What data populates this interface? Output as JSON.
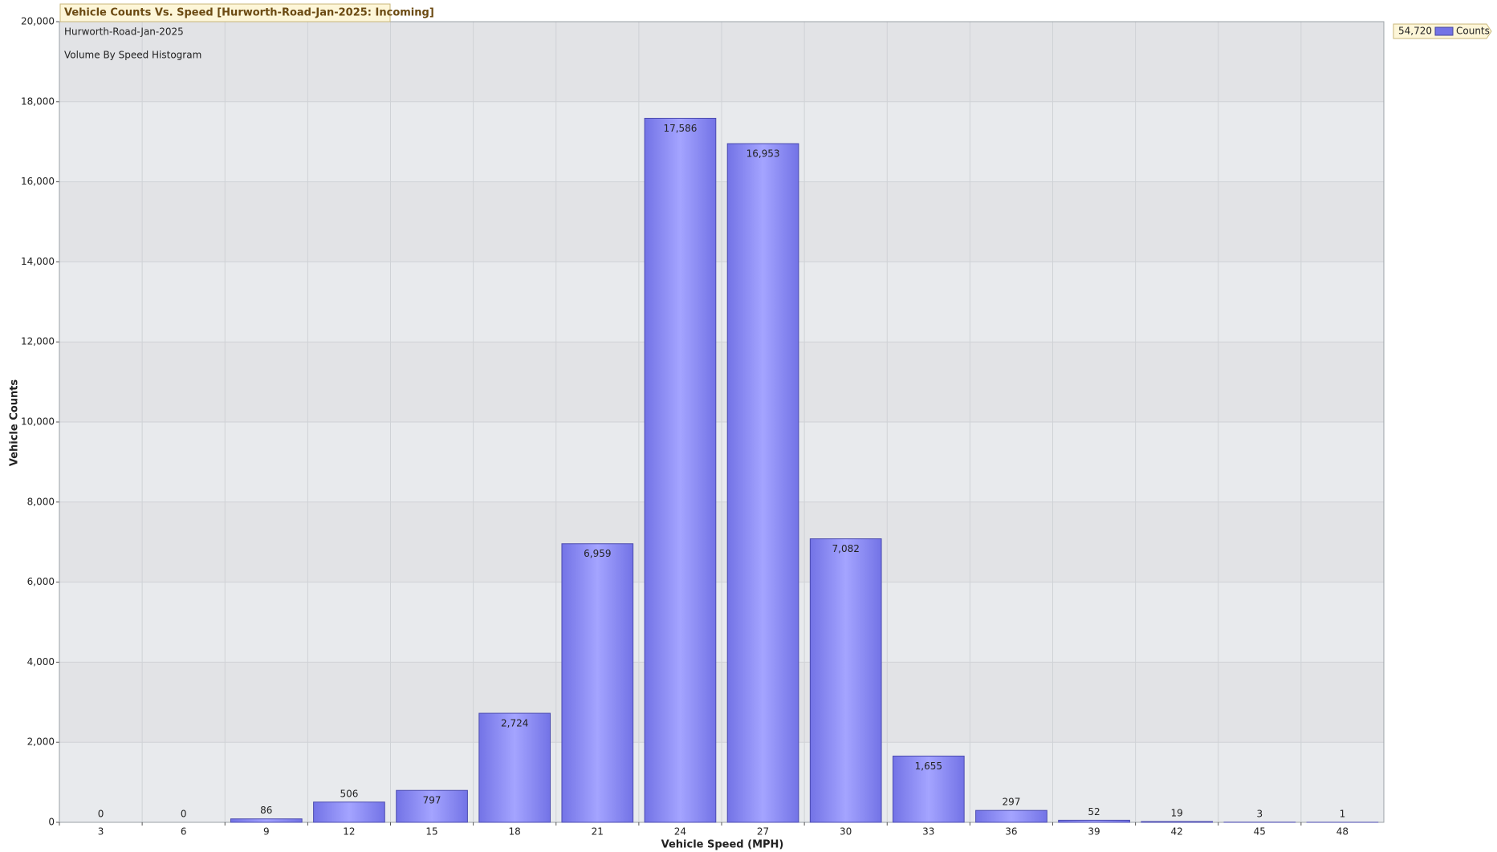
{
  "chart_data": {
    "type": "bar",
    "title": "Vehicle Counts Vs. Speed [Hurworth-Road-Jan-2025: Incoming]",
    "subtitles": [
      "Hurworth-Road-Jan-2025",
      "Volume By Speed Histogram"
    ],
    "x_label": "Vehicle Speed (MPH)",
    "y_label": "Vehicle Counts",
    "categories": [
      "3",
      "6",
      "9",
      "12",
      "15",
      "18",
      "21",
      "24",
      "27",
      "30",
      "33",
      "36",
      "39",
      "42",
      "45",
      "48"
    ],
    "series": [
      {
        "name": "Counts",
        "color": "#7373e6",
        "values": [
          0,
          0,
          86,
          506,
          797,
          2724,
          6959,
          17586,
          16953,
          7082,
          1655,
          297,
          52,
          19,
          3,
          1
        ],
        "value_labels": [
          "0",
          "0",
          "86",
          "506",
          "797",
          "2,724",
          "6,959",
          "17,586",
          "16,953",
          "7,082",
          "1,655",
          "297",
          "52",
          "19",
          "3",
          "1"
        ]
      }
    ],
    "legend_total": "54,720",
    "ylim": [
      0,
      20000
    ],
    "yticks": [
      0,
      {
        "value": 2000,
        "label": "2,000"
      },
      {
        "value": 4000,
        "label": "4,000"
      },
      {
        "value": 6000,
        "label": "6,000"
      },
      {
        "value": 8000,
        "label": "8,000"
      },
      {
        "value": 10000,
        "label": "10,000"
      },
      {
        "value": 12000,
        "label": "12,000"
      },
      {
        "value": 14000,
        "label": "14,000"
      },
      {
        "value": 16000,
        "label": "16,000"
      },
      {
        "value": 18000,
        "label": "18,000"
      },
      {
        "value": 20000,
        "label": "20,000"
      }
    ],
    "grid": true
  }
}
